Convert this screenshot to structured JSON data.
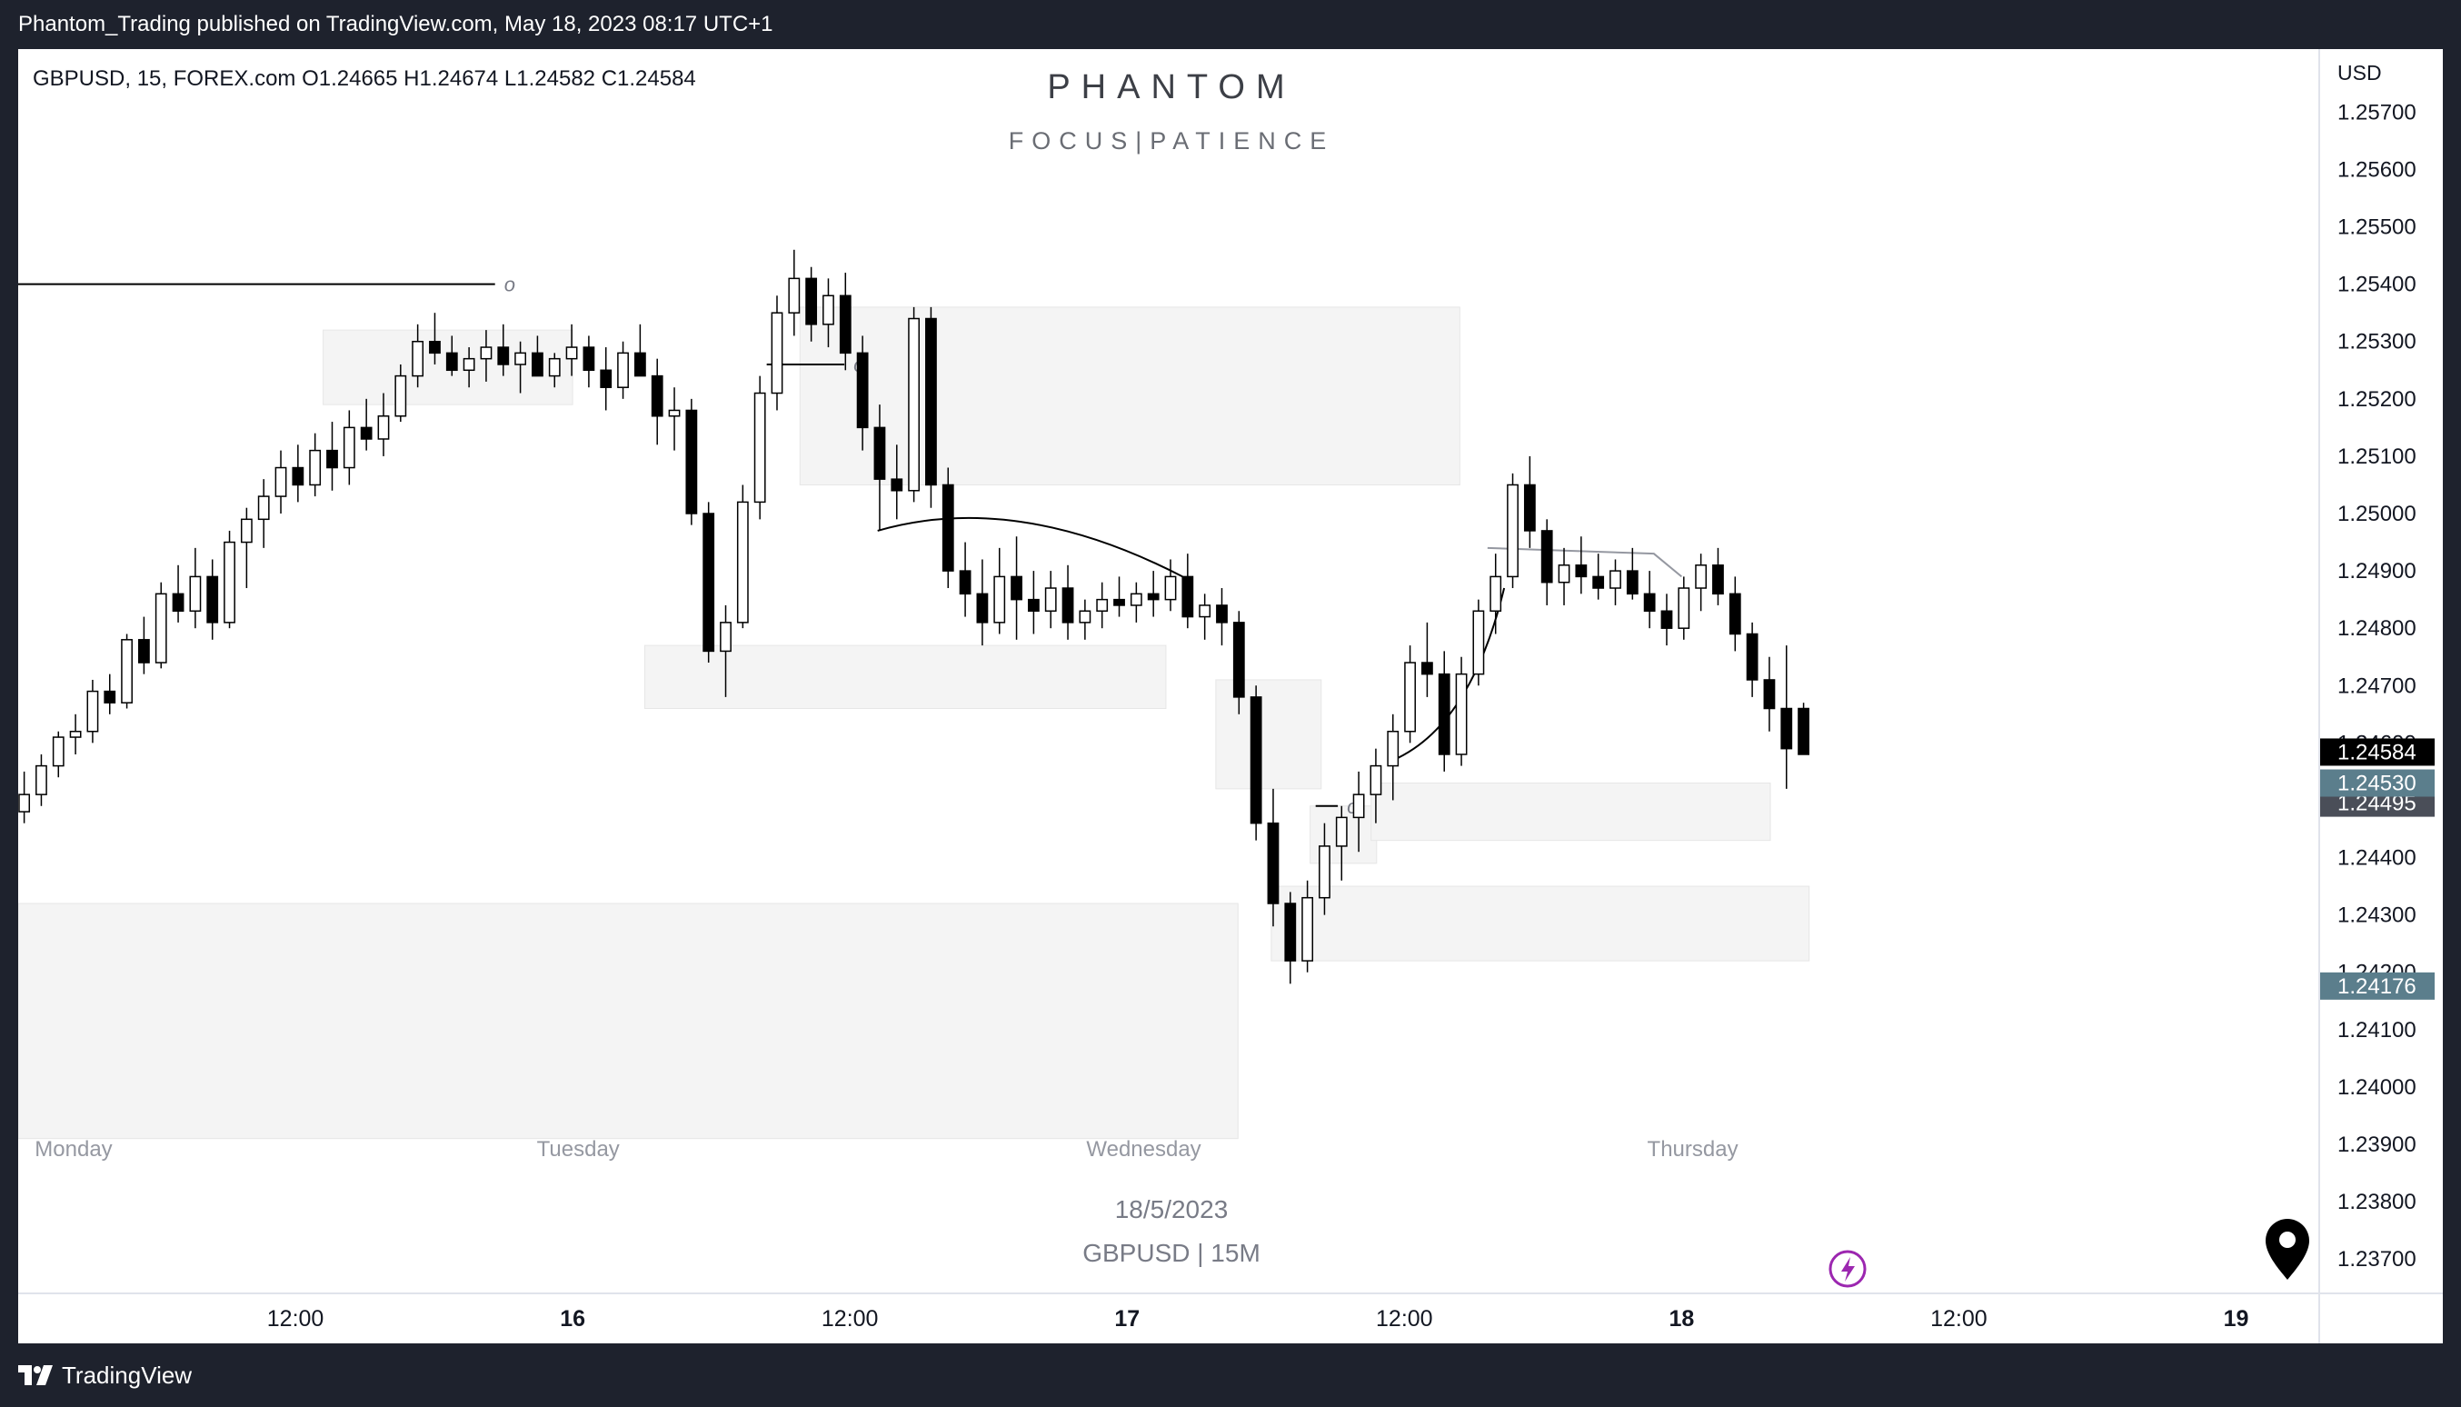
{
  "header": {
    "publish_line": "Phantom_Trading published on TradingView.com, May 18, 2023 08:17 UTC+1"
  },
  "footer": {
    "logo_text": "TradingView"
  },
  "chart_data": {
    "type": "candlestick",
    "symbol_line": "GBPUSD, 15, FOREX.com  O1.24665  H1.24674  L1.24582  C1.24584",
    "ohlc": {
      "open": 1.24665,
      "high": 1.24674,
      "low": 1.24582,
      "close": 1.24584
    },
    "watermark": {
      "title": "PHANTOM",
      "subtitle": "FOCUS|PATIENCE"
    },
    "date_caption": "18/5/2023",
    "pair_caption": "GBPUSD | 15M",
    "currency": "USD",
    "x_range_days": [
      0,
      4.15
    ],
    "ylim": [
      1.2364,
      1.2581
    ],
    "y_ticks": [
      1.237,
      1.238,
      1.239,
      1.24,
      1.241,
      1.242,
      1.243,
      1.244,
      1.245,
      1.246,
      1.247,
      1.248,
      1.249,
      1.25,
      1.251,
      1.252,
      1.253,
      1.254,
      1.255,
      1.256,
      1.257
    ],
    "x_ticks": [
      {
        "t": 0.5,
        "label": "12:00",
        "bold": false
      },
      {
        "t": 1.0,
        "label": "16",
        "bold": true
      },
      {
        "t": 1.5,
        "label": "12:00",
        "bold": false
      },
      {
        "t": 2.0,
        "label": "17",
        "bold": true
      },
      {
        "t": 2.5,
        "label": "12:00",
        "bold": false
      },
      {
        "t": 3.0,
        "label": "18",
        "bold": true
      },
      {
        "t": 3.5,
        "label": "12:00",
        "bold": false
      },
      {
        "t": 4.0,
        "label": "19",
        "bold": true
      }
    ],
    "day_labels": [
      {
        "t": 0.03,
        "label": "Monday"
      },
      {
        "t": 1.01,
        "label": "Tuesday"
      },
      {
        "t": 2.03,
        "label": "Wednesday"
      },
      {
        "t": 3.02,
        "label": "Thursday"
      }
    ],
    "price_badges": [
      {
        "value": 1.24584,
        "label": "1.24584",
        "color": "#000000"
      },
      {
        "value": 1.2453,
        "label": "1.24530",
        "color": "#5b7e8c"
      },
      {
        "value": 1.24495,
        "label": "1.24495",
        "color": "#4a4e58"
      },
      {
        "value": 1.24176,
        "label": "1.24176",
        "color": "#5b7e8c"
      }
    ],
    "zones": [
      {
        "t0": 0,
        "t1": 2.2,
        "top": 1.2432,
        "bottom": 1.2391
      },
      {
        "t0": 0.55,
        "t1": 1.0,
        "top": 1.2532,
        "bottom": 1.2519
      },
      {
        "t0": 1.41,
        "t1": 2.6,
        "top": 1.2536,
        "bottom": 1.2505
      },
      {
        "t0": 1.13,
        "t1": 2.07,
        "top": 1.2477,
        "bottom": 1.2466
      },
      {
        "t0": 2.16,
        "t1": 2.35,
        "top": 1.2471,
        "bottom": 1.2452
      },
      {
        "t0": 2.33,
        "t1": 2.45,
        "top": 1.2449,
        "bottom": 1.2439
      },
      {
        "t0": 2.44,
        "t1": 3.16,
        "top": 1.2453,
        "bottom": 1.2443
      },
      {
        "t0": 2.26,
        "t1": 3.23,
        "top": 1.2435,
        "bottom": 1.2422
      }
    ],
    "level_lines": [
      {
        "t0": 0,
        "t1": 0.86,
        "price": 1.254,
        "marker": "o"
      },
      {
        "t0": 1.35,
        "t1": 1.49,
        "price": 1.2526,
        "marker": "o"
      },
      {
        "t0": 2.34,
        "t1": 2.38,
        "price": 1.2449,
        "marker": "o"
      }
    ],
    "curves": [
      {
        "points": [
          [
            1.55,
            1.2497
          ],
          [
            1.8,
            1.2504
          ],
          [
            2.1,
            1.2489
          ]
        ]
      },
      {
        "points": [
          [
            2.48,
            1.2457
          ],
          [
            2.62,
            1.2463
          ],
          [
            2.68,
            1.2487
          ]
        ]
      }
    ],
    "trendline": [
      [
        2.65,
        1.2494
      ],
      [
        2.95,
        1.2493
      ],
      [
        3.0,
        1.2489
      ]
    ],
    "candles": [
      [
        1.2453,
        1.2458,
        1.2448,
        1.2448
      ],
      [
        1.2448,
        1.2455,
        1.2446,
        1.2451
      ],
      [
        1.2451,
        1.2458,
        1.2449,
        1.2456
      ],
      [
        1.2456,
        1.2462,
        1.2454,
        1.2461
      ],
      [
        1.2461,
        1.2465,
        1.2458,
        1.2462
      ],
      [
        1.2462,
        1.2471,
        1.246,
        1.2469
      ],
      [
        1.2469,
        1.2472,
        1.2465,
        1.2467
      ],
      [
        1.2467,
        1.2479,
        1.2466,
        1.2478
      ],
      [
        1.2478,
        1.2482,
        1.2472,
        1.2474
      ],
      [
        1.2474,
        1.2488,
        1.2473,
        1.2486
      ],
      [
        1.2486,
        1.2491,
        1.2481,
        1.2483
      ],
      [
        1.2483,
        1.2494,
        1.248,
        1.2489
      ],
      [
        1.2489,
        1.2492,
        1.2478,
        1.2481
      ],
      [
        1.2481,
        1.2497,
        1.248,
        1.2495
      ],
      [
        1.2495,
        1.2501,
        1.2487,
        1.2499
      ],
      [
        1.2499,
        1.2506,
        1.2494,
        1.2503
      ],
      [
        1.2503,
        1.2511,
        1.25,
        1.2508
      ],
      [
        1.2508,
        1.2512,
        1.2502,
        1.2505
      ],
      [
        1.2505,
        1.2514,
        1.2503,
        1.2511
      ],
      [
        1.2511,
        1.2516,
        1.2504,
        1.2508
      ],
      [
        1.2508,
        1.2518,
        1.2505,
        1.2515
      ],
      [
        1.2515,
        1.252,
        1.2511,
        1.2513
      ],
      [
        1.2513,
        1.2521,
        1.251,
        1.2517
      ],
      [
        1.2517,
        1.2526,
        1.2516,
        1.2524
      ],
      [
        1.2524,
        1.2533,
        1.2522,
        1.253
      ],
      [
        1.253,
        1.2535,
        1.2526,
        1.2528
      ],
      [
        1.2528,
        1.2531,
        1.2524,
        1.2525
      ],
      [
        1.2525,
        1.2529,
        1.2522,
        1.2527
      ],
      [
        1.2527,
        1.2532,
        1.2523,
        1.2529
      ],
      [
        1.2529,
        1.2533,
        1.2524,
        1.2526
      ],
      [
        1.2526,
        1.253,
        1.2521,
        1.2528
      ],
      [
        1.2528,
        1.2531,
        1.2525,
        1.2524
      ],
      [
        1.2524,
        1.2528,
        1.2522,
        1.2527
      ],
      [
        1.2527,
        1.2533,
        1.2524,
        1.2529
      ],
      [
        1.2529,
        1.2531,
        1.2522,
        1.2525
      ],
      [
        1.2525,
        1.2529,
        1.2518,
        1.2522
      ],
      [
        1.2522,
        1.253,
        1.252,
        1.2528
      ],
      [
        1.2528,
        1.2533,
        1.2524,
        1.2524
      ],
      [
        1.2524,
        1.2527,
        1.2512,
        1.2517
      ],
      [
        1.2517,
        1.2522,
        1.2511,
        1.2518
      ],
      [
        1.2518,
        1.252,
        1.2498,
        1.25
      ],
      [
        1.25,
        1.2502,
        1.2474,
        1.2476
      ],
      [
        1.2476,
        1.2484,
        1.2468,
        1.2481
      ],
      [
        1.2481,
        1.2505,
        1.248,
        1.2502
      ],
      [
        1.2502,
        1.2524,
        1.2499,
        1.2521
      ],
      [
        1.2521,
        1.2538,
        1.2518,
        1.2535
      ],
      [
        1.2535,
        1.2546,
        1.2531,
        1.2541
      ],
      [
        1.2541,
        1.2543,
        1.253,
        1.2533
      ],
      [
        1.2533,
        1.2541,
        1.2529,
        1.2538
      ],
      [
        1.2538,
        1.2542,
        1.2525,
        1.2528
      ],
      [
        1.2528,
        1.2531,
        1.2511,
        1.2515
      ],
      [
        1.2515,
        1.2519,
        1.2497,
        1.2506
      ],
      [
        1.2506,
        1.2512,
        1.2499,
        1.2504
      ],
      [
        1.2504,
        1.2536,
        1.2502,
        1.2534
      ],
      [
        1.2534,
        1.2536,
        1.2501,
        1.2505
      ],
      [
        1.2505,
        1.2508,
        1.2487,
        1.249
      ],
      [
        1.249,
        1.2495,
        1.2482,
        1.2486
      ],
      [
        1.2486,
        1.2492,
        1.2477,
        1.2481
      ],
      [
        1.2481,
        1.2494,
        1.2479,
        1.2489
      ],
      [
        1.2489,
        1.2496,
        1.2478,
        1.2485
      ],
      [
        1.2485,
        1.249,
        1.2479,
        1.2483
      ],
      [
        1.2483,
        1.249,
        1.248,
        1.2487
      ],
      [
        1.2487,
        1.2491,
        1.2478,
        1.2481
      ],
      [
        1.2481,
        1.2485,
        1.2478,
        1.2483
      ],
      [
        1.2483,
        1.2488,
        1.248,
        1.2485
      ],
      [
        1.2485,
        1.2489,
        1.2482,
        1.2484
      ],
      [
        1.2484,
        1.2488,
        1.2481,
        1.2486
      ],
      [
        1.2486,
        1.249,
        1.2482,
        1.2485
      ],
      [
        1.2485,
        1.2492,
        1.2483,
        1.2489
      ],
      [
        1.2489,
        1.2493,
        1.248,
        1.2482
      ],
      [
        1.2482,
        1.2486,
        1.2478,
        1.2484
      ],
      [
        1.2484,
        1.2487,
        1.2477,
        1.2481
      ],
      [
        1.2481,
        1.2483,
        1.2465,
        1.2468
      ],
      [
        1.2468,
        1.247,
        1.2443,
        1.2446
      ],
      [
        1.2446,
        1.2452,
        1.2428,
        1.2432
      ],
      [
        1.2432,
        1.2434,
        1.2418,
        1.2422
      ],
      [
        1.2422,
        1.2436,
        1.242,
        1.2433
      ],
      [
        1.2433,
        1.2446,
        1.243,
        1.2442
      ],
      [
        1.2442,
        1.2449,
        1.2436,
        1.2447
      ],
      [
        1.2447,
        1.2455,
        1.2441,
        1.2451
      ],
      [
        1.2451,
        1.2459,
        1.2446,
        1.2456
      ],
      [
        1.2456,
        1.2465,
        1.245,
        1.2462
      ],
      [
        1.2462,
        1.2477,
        1.246,
        1.2474
      ],
      [
        1.2474,
        1.2481,
        1.2468,
        1.2472
      ],
      [
        1.2472,
        1.2476,
        1.2455,
        1.2458
      ],
      [
        1.2458,
        1.2475,
        1.2456,
        1.2472
      ],
      [
        1.2472,
        1.2485,
        1.247,
        1.2483
      ],
      [
        1.2483,
        1.2493,
        1.2479,
        1.2489
      ],
      [
        1.2489,
        1.2507,
        1.2487,
        1.2505
      ],
      [
        1.2505,
        1.251,
        1.2494,
        1.2497
      ],
      [
        1.2497,
        1.2499,
        1.2484,
        1.2488
      ],
      [
        1.2488,
        1.2494,
        1.2484,
        1.2491
      ],
      [
        1.2491,
        1.2496,
        1.2486,
        1.2489
      ],
      [
        1.2489,
        1.2493,
        1.2485,
        1.2487
      ],
      [
        1.2487,
        1.2492,
        1.2484,
        1.249
      ],
      [
        1.249,
        1.2494,
        1.2485,
        1.2486
      ],
      [
        1.2486,
        1.249,
        1.248,
        1.2483
      ],
      [
        1.2483,
        1.2486,
        1.2477,
        1.248
      ],
      [
        1.248,
        1.2489,
        1.2478,
        1.2487
      ],
      [
        1.2487,
        1.2493,
        1.2483,
        1.2491
      ],
      [
        1.2491,
        1.2494,
        1.2484,
        1.2486
      ],
      [
        1.2486,
        1.2489,
        1.2476,
        1.2479
      ],
      [
        1.2479,
        1.2481,
        1.2468,
        1.2471
      ],
      [
        1.2471,
        1.2475,
        1.2462,
        1.2466
      ],
      [
        1.2466,
        1.2477,
        1.2452,
        1.2459
      ],
      [
        1.2466,
        1.2467,
        1.2458,
        1.2458
      ]
    ]
  }
}
